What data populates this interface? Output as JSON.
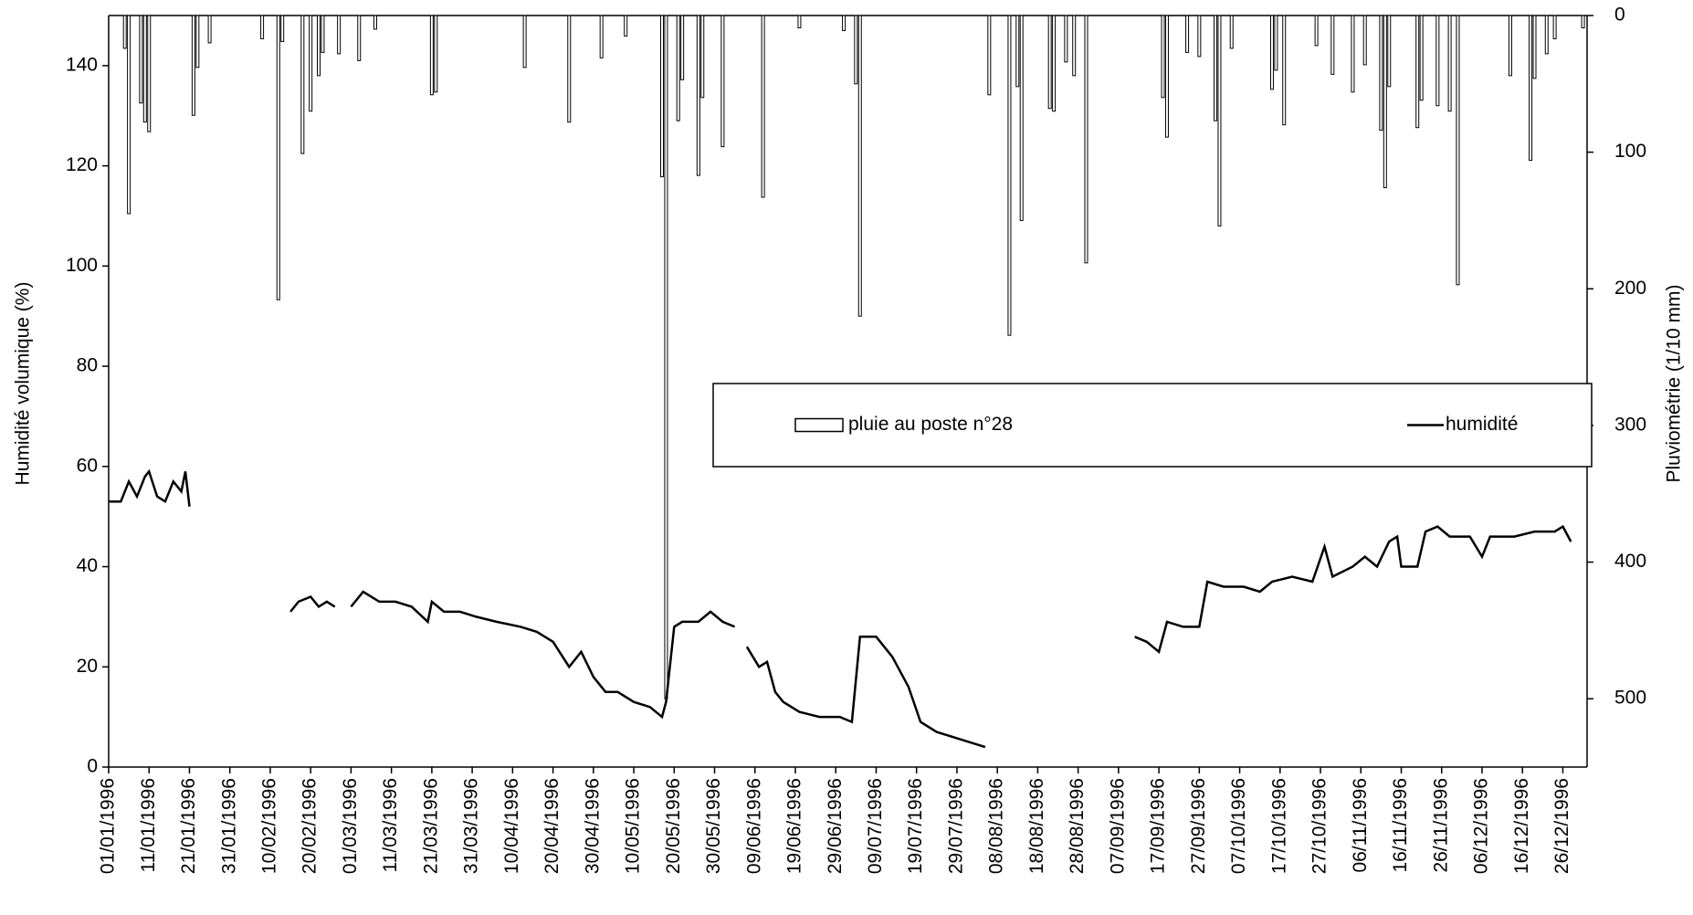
{
  "chart_data": {
    "type": "combo",
    "y_label": "Humidité volumique (%)",
    "y2_label": "Pluviométrie (1/10 mm)",
    "xlim": [
      "01/01/1996",
      "31/12/1996"
    ],
    "xticks": [
      "01/01/1996",
      "11/01/1996",
      "21/01/1996",
      "31/01/1996",
      "10/02/1996",
      "20/02/1996",
      "01/03/1996",
      "11/03/1996",
      "21/03/1996",
      "31/03/1996",
      "10/04/1996",
      "20/04/1996",
      "30/04/1996",
      "10/05/1996",
      "20/05/1996",
      "30/05/1996",
      "09/06/1996",
      "19/06/1996",
      "29/06/1996",
      "09/07/1996",
      "19/07/1996",
      "29/07/1996",
      "08/08/1996",
      "18/08/1996",
      "28/08/1996",
      "07/09/1996",
      "17/09/1996",
      "27/09/1996",
      "07/10/1996",
      "17/10/1996",
      "27/10/1996",
      "06/11/1996",
      "16/11/1996",
      "26/11/1996",
      "06/12/1996",
      "16/12/1996",
      "26/12/1996"
    ],
    "ylim": [
      0,
      150
    ],
    "yticks": [
      0,
      20,
      40,
      60,
      80,
      100,
      120,
      140
    ],
    "y2lim": [
      0,
      550
    ],
    "y2ticks": [
      0,
      100,
      200,
      300,
      400,
      500
    ],
    "y2_inverted": true,
    "legend": "center",
    "series": [
      {
        "name": "pluie au poste n°28",
        "type": "bar",
        "axis": "y2",
        "color": "#ffffff",
        "stroke": "#000000",
        "x": [
          "05/01/1996",
          "06/01/1996",
          "09/01/1996",
          "10/01/1996",
          "11/01/1996",
          "22/01/1996",
          "23/01/1996",
          "26/01/1996",
          "08/02/1996",
          "12/02/1996",
          "13/02/1996",
          "18/02/1996",
          "20/02/1996",
          "22/02/1996",
          "23/02/1996",
          "27/02/1996",
          "03/03/1996",
          "07/03/1996",
          "21/03/1996",
          "22/03/1996",
          "13/04/1996",
          "24/04/1996",
          "02/05/1996",
          "08/05/1996",
          "17/05/1996",
          "18/05/1996",
          "21/05/1996",
          "22/05/1996",
          "26/05/1996",
          "27/05/1996",
          "01/06/1996",
          "11/06/1996",
          "20/06/1996",
          "01/07/1996",
          "04/07/1996",
          "05/07/1996",
          "06/08/1996",
          "11/08/1996",
          "13/08/1996",
          "14/08/1996",
          "21/08/1996",
          "22/08/1996",
          "25/08/1996",
          "27/08/1996",
          "30/08/1996",
          "18/09/1996",
          "19/09/1996",
          "24/09/1996",
          "27/09/1996",
          "01/10/1996",
          "02/10/1996",
          "05/10/1996",
          "15/10/1996",
          "16/10/1996",
          "18/10/1996",
          "26/10/1996",
          "30/10/1996",
          "04/11/1996",
          "07/11/1996",
          "11/11/1996",
          "12/11/1996",
          "13/11/1996",
          "20/11/1996",
          "21/11/1996",
          "25/11/1996",
          "28/11/1996",
          "30/11/1996",
          "13/12/1996",
          "18/12/1996",
          "19/12/1996",
          "22/12/1996",
          "24/12/1996",
          "31/12/1996"
        ],
        "values": [
          24,
          145,
          64,
          78,
          85,
          73,
          38,
          20,
          17,
          208,
          19,
          101,
          70,
          44,
          27,
          28,
          33,
          10,
          58,
          56,
          38,
          78,
          31,
          15,
          118,
          500,
          77,
          47,
          117,
          60,
          96,
          133,
          9,
          11,
          50,
          220,
          58,
          234,
          52,
          150,
          68,
          70,
          34,
          44,
          181,
          60,
          89,
          27,
          30,
          77,
          154,
          24,
          54,
          40,
          80,
          22,
          43,
          56,
          36,
          84,
          126,
          52,
          82,
          62,
          66,
          70,
          197,
          44,
          106,
          46,
          28,
          17,
          9
        ]
      },
      {
        "name": "humidité",
        "type": "line",
        "axis": "y",
        "color": "#000000",
        "x": [
          "01/01/1996",
          "04/01/1996",
          "06/01/1996",
          "08/01/1996",
          "10/01/1996",
          "11/01/1996",
          "13/01/1996",
          "15/01/1996",
          "17/01/1996",
          "19/01/1996",
          "20/01/1996",
          "21/01/1996",
          "01/02/1996",
          "15/02/1996",
          "17/02/1996",
          "20/02/1996",
          "22/02/1996",
          "24/02/1996",
          "26/02/1996",
          "28/02/1996",
          "01/03/1996",
          "04/03/1996",
          "08/03/1996",
          "12/03/1996",
          "16/03/1996",
          "20/03/1996",
          "21/03/1996",
          "24/03/1996",
          "28/03/1996",
          "01/04/1996",
          "06/04/1996",
          "12/04/1996",
          "16/04/1996",
          "20/04/1996",
          "24/04/1996",
          "27/04/1996",
          "30/04/1996",
          "03/05/1996",
          "06/05/1996",
          "10/05/1996",
          "14/05/1996",
          "17/05/1996",
          "18/05/1996",
          "20/05/1996",
          "22/05/1996",
          "26/05/1996",
          "29/05/1996",
          "01/06/1996",
          "04/06/1996",
          "06/06/1996",
          "07/06/1996",
          "10/06/1996",
          "12/06/1996",
          "14/06/1996",
          "16/06/1996",
          "20/06/1996",
          "25/06/1996",
          "30/06/1996",
          "03/07/1996",
          "05/07/1996",
          "09/07/1996",
          "13/07/1996",
          "17/07/1996",
          "20/07/1996",
          "24/07/1996",
          "28/07/1996",
          "01/08/1996",
          "05/08/1996",
          "01/09/1996",
          "11/09/1996",
          "14/09/1996",
          "17/09/1996",
          "19/09/1996",
          "23/09/1996",
          "27/09/1996",
          "29/09/1996",
          "03/10/1996",
          "08/10/1996",
          "12/10/1996",
          "15/10/1996",
          "20/10/1996",
          "25/10/1996",
          "28/10/1996",
          "30/10/1996",
          "04/11/1996",
          "07/11/1996",
          "10/11/1996",
          "13/11/1996",
          "15/11/1996",
          "16/11/1996",
          "20/11/1996",
          "22/11/1996",
          "25/11/1996",
          "28/11/1996",
          "03/12/1996",
          "06/12/1996",
          "08/12/1996",
          "14/12/1996",
          "19/12/1996",
          "24/12/1996",
          "26/12/1996",
          "28/12/1996"
        ],
        "values": [
          53,
          53,
          57,
          54,
          58,
          59,
          54,
          53,
          57,
          55,
          59,
          52,
          null,
          31,
          33,
          34,
          32,
          33,
          32,
          null,
          32,
          35,
          33,
          33,
          32,
          29,
          33,
          31,
          31,
          30,
          29,
          28,
          27,
          25,
          20,
          23,
          18,
          15,
          15,
          13,
          12,
          10,
          13,
          28,
          29,
          29,
          31,
          29,
          28,
          null,
          24,
          20,
          21,
          15,
          13,
          11,
          10,
          10,
          9,
          26,
          26,
          22,
          16,
          9,
          7,
          6,
          5,
          4,
          null,
          26,
          25,
          23,
          29,
          28,
          28,
          37,
          36,
          36,
          35,
          37,
          38,
          37,
          44,
          38,
          40,
          42,
          40,
          45,
          46,
          40,
          40,
          47,
          48,
          46,
          46,
          42,
          46,
          46,
          47,
          47,
          48,
          45
        ]
      }
    ]
  }
}
